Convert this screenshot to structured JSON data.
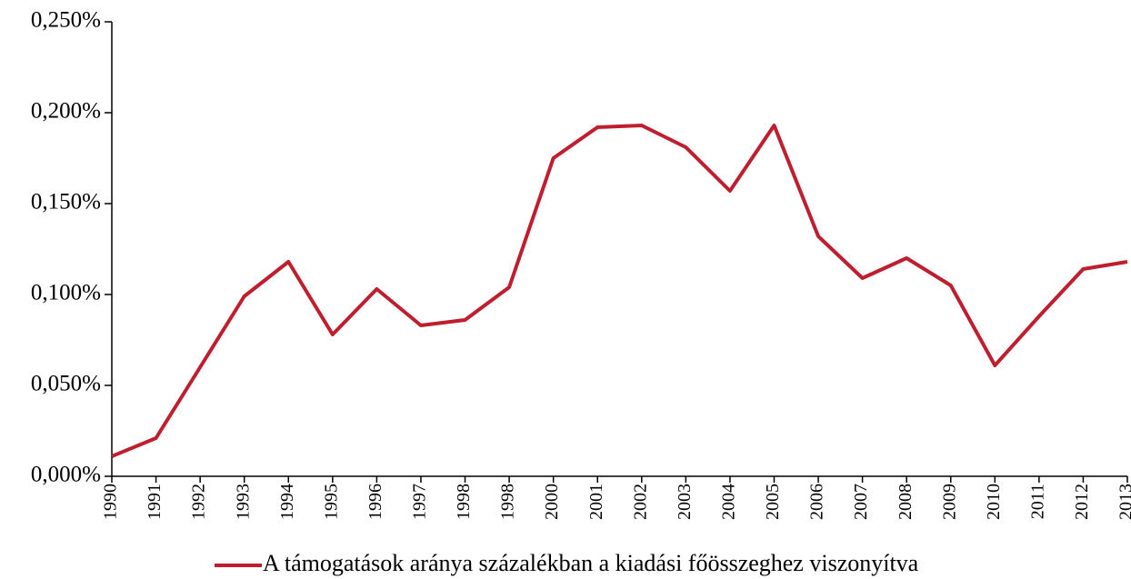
{
  "chart_data": {
    "type": "line",
    "categories": [
      "1990",
      "1991",
      "1992",
      "1993",
      "1994",
      "1995",
      "1996",
      "1997",
      "1998",
      "1998",
      "2000",
      "2001",
      "2002",
      "2003",
      "2004",
      "2005",
      "2006",
      "2007",
      "2008",
      "2009",
      "2010",
      "2011",
      "2012",
      "2013"
    ],
    "series": [
      {
        "name": "A támogatások aránya százalékban a kiadási főösszeghez viszonyítva",
        "color": "#be1e2d",
        "values": [
          0.011,
          0.021,
          0.06,
          0.099,
          0.118,
          0.078,
          0.103,
          0.083,
          0.086,
          0.104,
          0.175,
          0.192,
          0.193,
          0.181,
          0.157,
          0.193,
          0.132,
          0.109,
          0.12,
          0.105,
          0.061,
          0.088,
          0.114,
          0.118
        ]
      }
    ],
    "ylim": [
      0,
      0.25
    ],
    "yticks": [
      {
        "value": 0,
        "label": "0,000%"
      },
      {
        "value": 0.05,
        "label": "0,050%"
      },
      {
        "value": 0.1,
        "label": "0,100%"
      },
      {
        "value": 0.15,
        "label": "0,150%"
      },
      {
        "value": 0.2,
        "label": "0,200%"
      },
      {
        "value": 0.25,
        "label": "0,250%"
      }
    ],
    "grid": false,
    "legend": "bottom"
  }
}
